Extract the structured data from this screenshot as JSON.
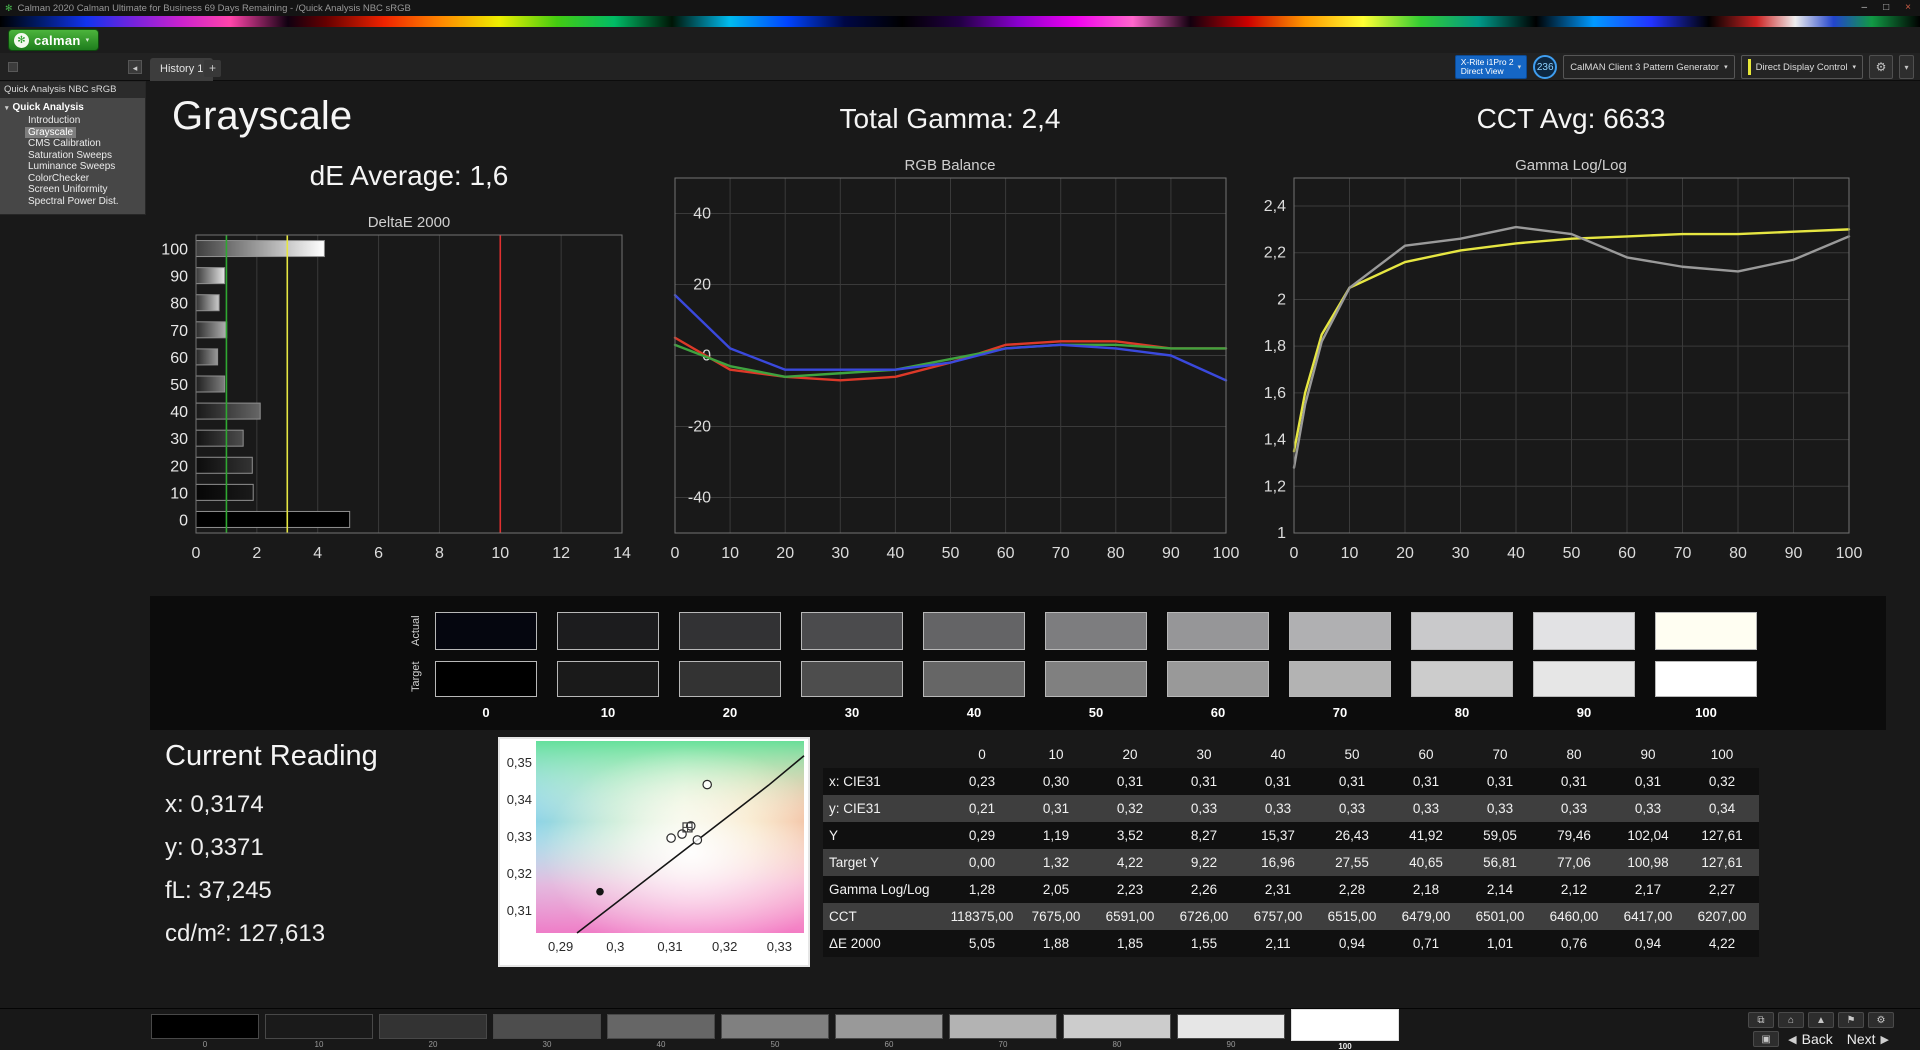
{
  "window": {
    "title": "Calman 2020 Calman Ultimate for Business 69 Days Remaining - /Quick Analysis NBC sRGB",
    "controls": {
      "minimize": "–",
      "maximize": "□",
      "close": "×"
    }
  },
  "logo": {
    "text": "calman"
  },
  "icons": {
    "logo_flower": "✻",
    "caret_down": "▾",
    "collapse_left": "◂",
    "gear": "⚙",
    "screen": "▣",
    "back_arrow": "◀",
    "next_arrow": "▶"
  },
  "tabs": {
    "history_tab": "History 1",
    "add_tab": "+"
  },
  "devices": {
    "meter": {
      "line1": "X-Rite i1Pro 2",
      "line2": "Direct View"
    },
    "badge": "236",
    "pattern_generator": "CalMAN Client 3 Pattern Generator",
    "display_control": "Direct Display Control"
  },
  "sidebar": {
    "header": "Quick Analysis NBC sRGB",
    "root": "Quick Analysis",
    "items": [
      {
        "label": "Introduction",
        "selected": false
      },
      {
        "label": "Grayscale",
        "selected": true
      },
      {
        "label": "CMS Calibration",
        "selected": false
      },
      {
        "label": "Saturation Sweeps",
        "selected": false
      },
      {
        "label": "Luminance Sweeps",
        "selected": false
      },
      {
        "label": "ColorChecker",
        "selected": false
      },
      {
        "label": "Screen Uniformity",
        "selected": false
      },
      {
        "label": "Spectral Power Dist.",
        "selected": false
      }
    ]
  },
  "headings": {
    "page_title": "Grayscale",
    "de_average": "dE Average: 1,6",
    "total_gamma": "Total Gamma: 2,4",
    "cct_avg": "CCT Avg: 6633"
  },
  "chart_data": [
    {
      "id": "deltae",
      "type": "bar",
      "orientation": "horizontal",
      "title": "DeltaE 2000",
      "categories": [
        100,
        90,
        80,
        70,
        60,
        50,
        40,
        30,
        20,
        10,
        0
      ],
      "values": [
        4.22,
        0.94,
        0.76,
        1.01,
        0.71,
        0.94,
        2.11,
        1.55,
        1.85,
        1.88,
        5.05
      ],
      "xlim": [
        0,
        14
      ],
      "xticks": [
        0,
        2,
        4,
        6,
        8,
        10,
        12,
        14
      ],
      "reference_lines": [
        {
          "label": "green-threshold",
          "value": 1,
          "color": "#2fa832"
        },
        {
          "label": "yellow-threshold",
          "value": 3,
          "color": "#e6e642"
        },
        {
          "label": "red-threshold",
          "value": 10,
          "color": "#e03030"
        }
      ]
    },
    {
      "id": "rgb_balance",
      "type": "line",
      "title": "RGB Balance",
      "x": [
        0,
        10,
        20,
        30,
        40,
        50,
        60,
        70,
        80,
        90,
        100
      ],
      "xlim": [
        0,
        100
      ],
      "xticks": [
        0,
        10,
        20,
        30,
        40,
        50,
        60,
        70,
        80,
        90,
        100
      ],
      "ylim": [
        -50,
        50
      ],
      "yticks": [
        -40,
        -20,
        0,
        20,
        40
      ],
      "series": [
        {
          "name": "Red",
          "color": "#dd3928",
          "values": [
            5,
            -4,
            -6,
            -7,
            -6,
            -2,
            3,
            4,
            4,
            2,
            2
          ]
        },
        {
          "name": "Green",
          "color": "#3fa33f",
          "values": [
            3,
            -3,
            -6,
            -5,
            -4,
            -1,
            2,
            3,
            3,
            2,
            2
          ]
        },
        {
          "name": "Blue",
          "color": "#3a49dd",
          "values": [
            17,
            2,
            -4,
            -4,
            -4,
            -2,
            2,
            3,
            2,
            0,
            -7
          ]
        }
      ]
    },
    {
      "id": "gamma",
      "type": "line",
      "title": "Gamma Log/Log",
      "decimal_comma": true,
      "xlim": [
        0,
        100
      ],
      "xticks": [
        0,
        10,
        20,
        30,
        40,
        50,
        60,
        70,
        80,
        90,
        100
      ],
      "ylim": [
        1,
        2.52
      ],
      "yticks": [
        1,
        1.2,
        1.4,
        1.6,
        1.8,
        2,
        2.2,
        2.4
      ],
      "series": [
        {
          "name": "Target",
          "color": "#e6e642",
          "x": [
            0,
            2,
            5,
            10,
            20,
            30,
            40,
            50,
            60,
            70,
            80,
            90,
            100
          ],
          "values": [
            1.35,
            1.6,
            1.85,
            2.05,
            2.16,
            2.21,
            2.24,
            2.26,
            2.27,
            2.28,
            2.28,
            2.29,
            2.3
          ]
        },
        {
          "name": "Measured",
          "color": "#9a9a9a",
          "x": [
            0,
            2,
            5,
            10,
            20,
            30,
            40,
            50,
            60,
            70,
            80,
            90,
            100
          ],
          "values": [
            1.28,
            1.55,
            1.82,
            2.05,
            2.23,
            2.26,
            2.31,
            2.28,
            2.18,
            2.14,
            2.12,
            2.17,
            2.27
          ]
        }
      ]
    },
    {
      "id": "cie",
      "type": "scatter",
      "title": "CIE Chromaticity Zoom",
      "xlim": [
        0.2855,
        0.3345
      ],
      "ylim": [
        0.304,
        0.356
      ],
      "xticks": [
        0.29,
        0.3,
        0.31,
        0.32,
        0.33
      ],
      "yticks": [
        0.31,
        0.32,
        0.33,
        0.34,
        0.35
      ],
      "locus": [
        [
          0.293,
          0.304
        ],
        [
          0.3,
          0.312
        ],
        [
          0.307,
          0.32
        ],
        [
          0.314,
          0.328
        ],
        [
          0.321,
          0.336
        ],
        [
          0.328,
          0.344
        ],
        [
          0.3345,
          0.352
        ]
      ],
      "points_open": [
        [
          0.3168,
          0.3442
        ],
        [
          0.3122,
          0.3308
        ],
        [
          0.3138,
          0.333
        ],
        [
          0.3102,
          0.3297
        ],
        [
          0.315,
          0.3292
        ]
      ],
      "points_filled": [
        [
          0.2972,
          0.3152
        ]
      ],
      "target_marker": [
        0.3132,
        0.3326
      ]
    }
  ],
  "swatch_strip": {
    "row_labels": [
      "Actual",
      "Target"
    ],
    "column_labels": [
      "0",
      "10",
      "20",
      "30",
      "40",
      "50",
      "60",
      "70",
      "80",
      "90",
      "100"
    ],
    "actual_colors": [
      "#05060f",
      "#1c1c1e",
      "#323234",
      "#4b4b4d",
      "#646466",
      "#7d7d7f",
      "#969698",
      "#b0b0b2",
      "#c9c9cb",
      "#e2e2e4",
      "#fffef2"
    ],
    "target_colors": [
      "#000000",
      "#1a1a1a",
      "#333333",
      "#4d4d4d",
      "#666666",
      "#808080",
      "#999999",
      "#b3b3b3",
      "#cccccc",
      "#e6e6e6",
      "#ffffff"
    ]
  },
  "current_reading": {
    "title": "Current Reading",
    "lines": [
      "x: 0,3174",
      "y: 0,3371",
      "fL: 37,245",
      "cd/m²: 127,613"
    ]
  },
  "table": {
    "columns": [
      "0",
      "10",
      "20",
      "30",
      "40",
      "50",
      "60",
      "70",
      "80",
      "90",
      "100"
    ],
    "rows": [
      {
        "label": "x: CIE31",
        "values": [
          "0,23",
          "0,30",
          "0,31",
          "0,31",
          "0,31",
          "0,31",
          "0,31",
          "0,31",
          "0,31",
          "0,31",
          "0,32"
        ]
      },
      {
        "label": "y: CIE31",
        "values": [
          "0,21",
          "0,31",
          "0,32",
          "0,33",
          "0,33",
          "0,33",
          "0,33",
          "0,33",
          "0,33",
          "0,33",
          "0,34"
        ]
      },
      {
        "label": "Y",
        "values": [
          "0,29",
          "1,19",
          "3,52",
          "8,27",
          "15,37",
          "26,43",
          "41,92",
          "59,05",
          "79,46",
          "102,04",
          "127,61"
        ]
      },
      {
        "label": "Target Y",
        "values": [
          "0,00",
          "1,32",
          "4,22",
          "9,22",
          "16,96",
          "27,55",
          "40,65",
          "56,81",
          "77,06",
          "100,98",
          "127,61"
        ]
      },
      {
        "label": "Gamma Log/Log",
        "values": [
          "1,28",
          "2,05",
          "2,23",
          "2,26",
          "2,31",
          "2,28",
          "2,18",
          "2,14",
          "2,12",
          "2,17",
          "2,27"
        ]
      },
      {
        "label": "CCT",
        "values": [
          "118375,00",
          "7675,00",
          "6591,00",
          "6726,00",
          "6757,00",
          "6515,00",
          "6479,00",
          "6501,00",
          "6460,00",
          "6417,00",
          "6207,00"
        ]
      },
      {
        "label": "ΔE 2000",
        "values": [
          "5,05",
          "1,88",
          "1,85",
          "1,55",
          "2,11",
          "0,94",
          "0,71",
          "1,01",
          "0,76",
          "0,94",
          "4,22"
        ]
      }
    ]
  },
  "bottom_bar": {
    "swatches": [
      {
        "label": "0",
        "color": "#000000",
        "selected": false
      },
      {
        "label": "10",
        "color": "#1a1a1a",
        "selected": false
      },
      {
        "label": "20",
        "color": "#333333",
        "selected": false
      },
      {
        "label": "30",
        "color": "#4d4d4d",
        "selected": false
      },
      {
        "label": "40",
        "color": "#666666",
        "selected": false
      },
      {
        "label": "50",
        "color": "#808080",
        "selected": false
      },
      {
        "label": "60",
        "color": "#999999",
        "selected": false
      },
      {
        "label": "70",
        "color": "#b3b3b3",
        "selected": false
      },
      {
        "label": "80",
        "color": "#cccccc",
        "selected": false
      },
      {
        "label": "90",
        "color": "#e6e6e6",
        "selected": false
      },
      {
        "label": "100",
        "color": "#ffffff",
        "selected": true
      }
    ],
    "icons": [
      {
        "name": "display-window",
        "glyph": "⧉"
      },
      {
        "name": "home",
        "glyph": "⌂"
      },
      {
        "name": "arrow-up",
        "glyph": "▲"
      },
      {
        "name": "flag",
        "glyph": "⚑"
      },
      {
        "name": "gear",
        "glyph": "⚙"
      }
    ],
    "nav": {
      "back": "Back",
      "next": "Next"
    }
  }
}
